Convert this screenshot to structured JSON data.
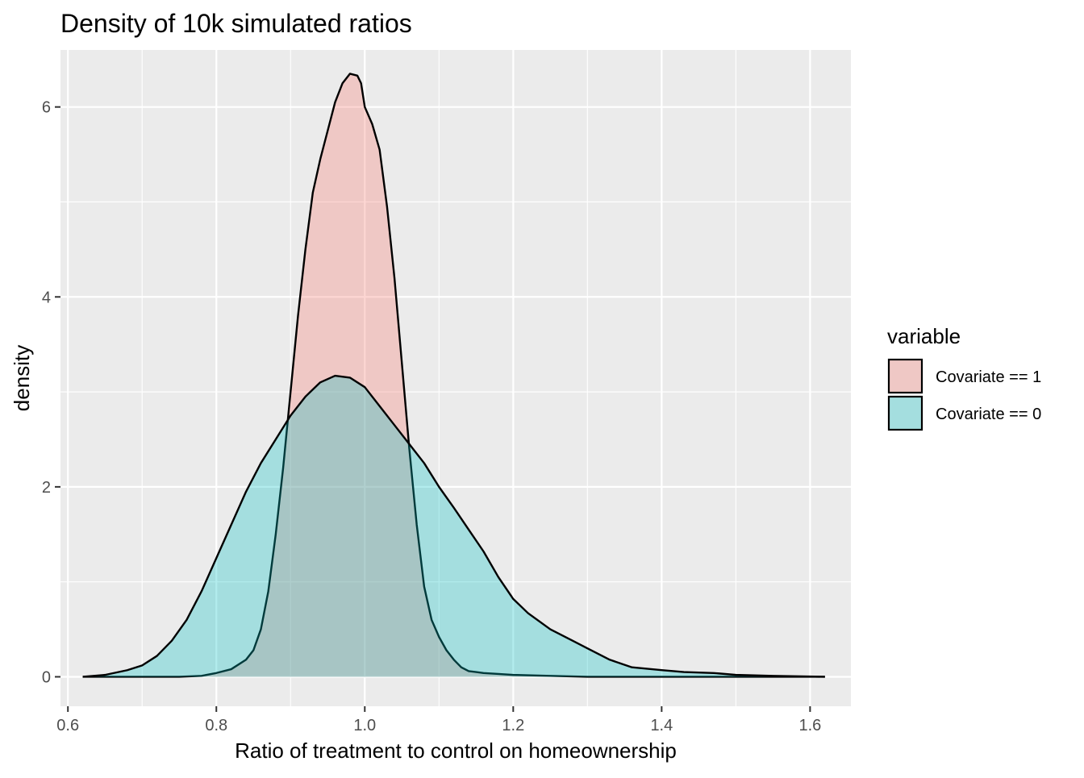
{
  "chart_data": {
    "type": "area",
    "title": "Density of 10k simulated ratios",
    "xlabel": "Ratio of treatment to control on homeownership",
    "ylabel": "density",
    "xlim": [
      0.59,
      1.655
    ],
    "ylim": [
      -0.31,
      6.6
    ],
    "x_ticks": [
      0.6,
      0.8,
      1.0,
      1.2,
      1.4,
      1.6
    ],
    "x_tick_labels": [
      "0.6",
      "0.8",
      "1.0",
      "1.2",
      "1.4",
      "1.6"
    ],
    "x_minor_ticks": [
      0.7,
      0.9,
      1.1,
      1.3,
      1.5
    ],
    "y_ticks": [
      0,
      2,
      4,
      6
    ],
    "y_tick_labels": [
      "0",
      "2",
      "4",
      "6"
    ],
    "y_minor_ticks": [
      1,
      3,
      5
    ],
    "grid": true,
    "legend": {
      "title": "variable",
      "position": "right"
    },
    "series": [
      {
        "name": "Covariate == 1",
        "fill": "#F8766D",
        "x": [
          0.62,
          0.7,
          0.75,
          0.78,
          0.8,
          0.82,
          0.84,
          0.85,
          0.86,
          0.87,
          0.88,
          0.89,
          0.9,
          0.91,
          0.92,
          0.93,
          0.94,
          0.95,
          0.96,
          0.97,
          0.98,
          0.99,
          0.995,
          1.0,
          1.01,
          1.02,
          1.03,
          1.04,
          1.05,
          1.06,
          1.07,
          1.08,
          1.09,
          1.1,
          1.11,
          1.12,
          1.13,
          1.14,
          1.15,
          1.16,
          1.18,
          1.2,
          1.25,
          1.3,
          1.4,
          1.5,
          1.62
        ],
        "values": [
          0,
          0,
          0,
          0.01,
          0.04,
          0.08,
          0.18,
          0.28,
          0.5,
          0.9,
          1.5,
          2.2,
          3.0,
          3.8,
          4.5,
          5.1,
          5.45,
          5.75,
          6.05,
          6.25,
          6.35,
          6.33,
          6.25,
          6.0,
          5.82,
          5.55,
          4.95,
          4.2,
          3.3,
          2.4,
          1.6,
          0.95,
          0.6,
          0.42,
          0.28,
          0.18,
          0.1,
          0.06,
          0.05,
          0.04,
          0.03,
          0.02,
          0.01,
          0,
          0,
          0,
          0
        ]
      },
      {
        "name": "Covariate == 0",
        "fill": "#00BFC4",
        "x": [
          0.62,
          0.65,
          0.68,
          0.7,
          0.72,
          0.74,
          0.76,
          0.78,
          0.8,
          0.82,
          0.84,
          0.86,
          0.88,
          0.9,
          0.92,
          0.94,
          0.96,
          0.98,
          1.0,
          1.02,
          1.04,
          1.06,
          1.08,
          1.1,
          1.12,
          1.14,
          1.16,
          1.18,
          1.2,
          1.22,
          1.25,
          1.28,
          1.3,
          1.33,
          1.36,
          1.4,
          1.43,
          1.47,
          1.5,
          1.55,
          1.62
        ],
        "values": [
          0,
          0.02,
          0.07,
          0.12,
          0.22,
          0.38,
          0.6,
          0.9,
          1.25,
          1.6,
          1.95,
          2.25,
          2.5,
          2.75,
          2.95,
          3.1,
          3.17,
          3.15,
          3.05,
          2.85,
          2.65,
          2.45,
          2.25,
          2.0,
          1.78,
          1.55,
          1.32,
          1.05,
          0.82,
          0.67,
          0.5,
          0.38,
          0.3,
          0.18,
          0.1,
          0.07,
          0.05,
          0.04,
          0.02,
          0.01,
          0
        ]
      }
    ]
  }
}
